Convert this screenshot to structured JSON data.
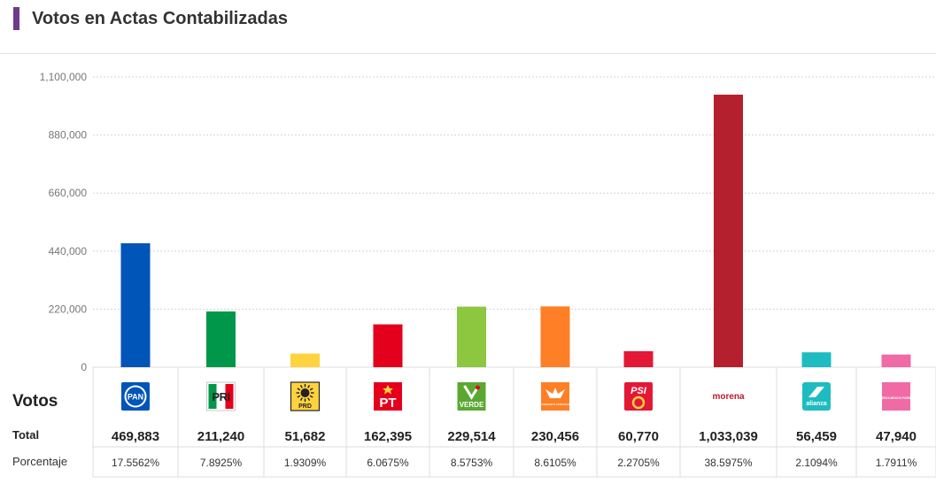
{
  "header": {
    "title": "Votos en Actas Contabilizadas",
    "accent_color": "#6e3a8e"
  },
  "table": {
    "votos_label": "Votos",
    "total_label": "Total",
    "pct_label": "Porcentaje"
  },
  "chart_data": {
    "type": "bar",
    "title": "Votos en Actas Contabilizadas",
    "ylim": [
      0,
      1100000
    ],
    "y_ticks": [
      0,
      220000,
      440000,
      660000,
      880000,
      1100000
    ],
    "y_tick_labels": [
      "0",
      "220,000",
      "440,000",
      "660,000",
      "880,000",
      "1,100,000"
    ],
    "grid": true,
    "categories": [
      "PAN",
      "PRI",
      "PRD",
      "PT",
      "VERDE",
      "MOVIMIENTO CIUDADANO",
      "PSI",
      "morena",
      "alianza Puebla",
      "FUERZA MEXICO PUEBLA"
    ],
    "values": [
      469883,
      211240,
      51682,
      162395,
      229514,
      230456,
      60770,
      1033039,
      56459,
      47940
    ],
    "value_labels": [
      "469,883",
      "211,240",
      "51,682",
      "162,395",
      "229,514",
      "230,456",
      "60,770",
      "1,033,039",
      "56,459",
      "47,940"
    ],
    "percentages": [
      "17.5562%",
      "7.8925%",
      "1.9309%",
      "6.0675%",
      "8.5753%",
      "8.6105%",
      "2.2705%",
      "38.5975%",
      "2.1094%",
      "1.7911%"
    ],
    "colors": [
      "#0055b8",
      "#00974a",
      "#ffd23f",
      "#e4001c",
      "#8dc63f",
      "#ff7f27",
      "#e31837",
      "#b5202e",
      "#1ebcc0",
      "#f06aa5"
    ],
    "logos": [
      {
        "icon": "pan-logo",
        "text": "PAN"
      },
      {
        "icon": "pri-logo",
        "text": "PRI"
      },
      {
        "icon": "prd-logo",
        "text": "PRD"
      },
      {
        "icon": "pt-logo",
        "text": "PT"
      },
      {
        "icon": "verde-logo",
        "text": "VERDE"
      },
      {
        "icon": "movimiento-ciudadano-logo",
        "text": "MOVIMIENTO CIUDADANO"
      },
      {
        "icon": "psi-logo",
        "text": "PSI"
      },
      {
        "icon": "morena-logo",
        "text": "morena"
      },
      {
        "icon": "alianza-puebla-logo",
        "text": "alianza"
      },
      {
        "icon": "fuerza-mexico-puebla-logo",
        "text": "FUERZA MEXICO PUEBLA"
      }
    ]
  }
}
